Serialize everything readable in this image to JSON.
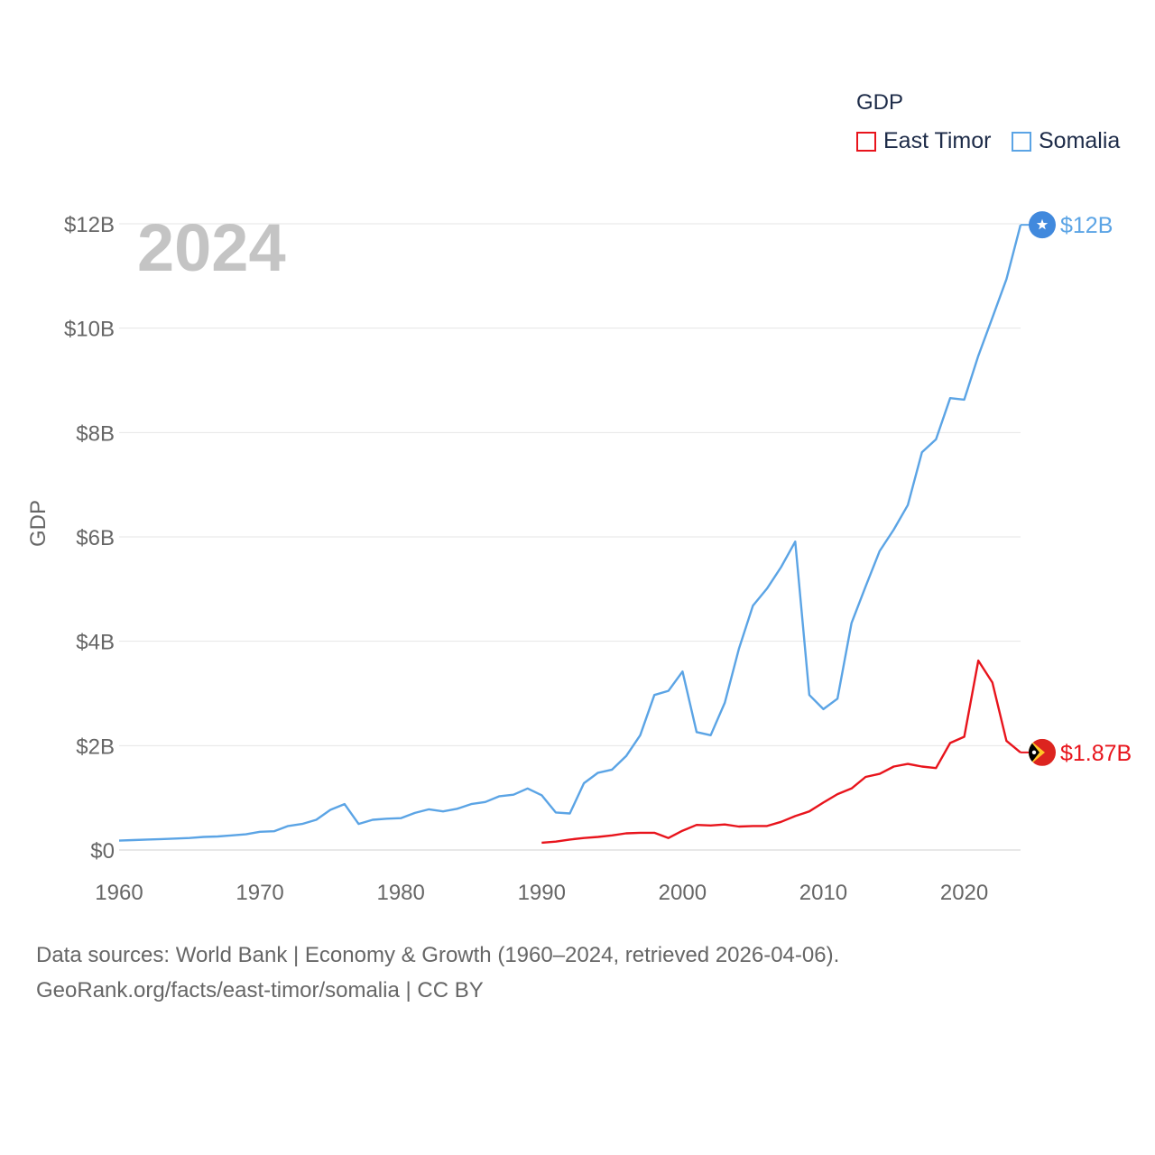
{
  "chart_data": {
    "type": "line",
    "year_label": "2024",
    "ylabel": "GDP",
    "xlabel": "",
    "xlim": [
      1960,
      2024
    ],
    "ylim": [
      0,
      12
    ],
    "x_ticks": [
      1960,
      1970,
      1980,
      1990,
      2000,
      2010,
      2020
    ],
    "x_tick_labels": [
      "1960",
      "1970",
      "1980",
      "1990",
      "2000",
      "2010",
      "2020"
    ],
    "y_ticks": [
      0,
      2,
      4,
      6,
      8,
      10,
      12
    ],
    "y_tick_labels": [
      "$0",
      "$2B",
      "$4B",
      "$6B",
      "$8B",
      "$10B",
      "$12B"
    ],
    "legend": {
      "title": "GDP",
      "position": "top-right",
      "entries": [
        "East Timor",
        "Somalia"
      ]
    },
    "series": [
      {
        "name": "East Timor",
        "color": "#e8141c",
        "end_label": "$1.87B",
        "flag_icon": "east-timor-flag-icon",
        "points": [
          [
            1990,
            0.14
          ],
          [
            1991,
            0.16
          ],
          [
            1992,
            0.2
          ],
          [
            1993,
            0.23
          ],
          [
            1994,
            0.25
          ],
          [
            1995,
            0.28
          ],
          [
            1996,
            0.32
          ],
          [
            1997,
            0.33
          ],
          [
            1998,
            0.33
          ],
          [
            1999,
            0.23
          ],
          [
            2000,
            0.37
          ],
          [
            2001,
            0.48
          ],
          [
            2002,
            0.47
          ],
          [
            2003,
            0.49
          ],
          [
            2004,
            0.45
          ],
          [
            2005,
            0.46
          ],
          [
            2006,
            0.46
          ],
          [
            2007,
            0.54
          ],
          [
            2008,
            0.65
          ],
          [
            2009,
            0.74
          ],
          [
            2010,
            0.91
          ],
          [
            2011,
            1.07
          ],
          [
            2012,
            1.18
          ],
          [
            2013,
            1.4
          ],
          [
            2014,
            1.46
          ],
          [
            2015,
            1.6
          ],
          [
            2016,
            1.65
          ],
          [
            2017,
            1.6
          ],
          [
            2018,
            1.57
          ],
          [
            2019,
            2.05
          ],
          [
            2020,
            2.17
          ],
          [
            2021,
            3.63
          ],
          [
            2022,
            3.21
          ],
          [
            2023,
            2.09
          ],
          [
            2024,
            1.87
          ]
        ]
      },
      {
        "name": "Somalia",
        "color": "#5ba4e5",
        "end_label": "$12B",
        "flag_icon": "somalia-flag-icon",
        "points": [
          [
            1960,
            0.18
          ],
          [
            1961,
            0.19
          ],
          [
            1962,
            0.2
          ],
          [
            1963,
            0.21
          ],
          [
            1964,
            0.22
          ],
          [
            1965,
            0.23
          ],
          [
            1966,
            0.25
          ],
          [
            1967,
            0.26
          ],
          [
            1968,
            0.28
          ],
          [
            1969,
            0.3
          ],
          [
            1970,
            0.35
          ],
          [
            1971,
            0.36
          ],
          [
            1972,
            0.46
          ],
          [
            1973,
            0.5
          ],
          [
            1974,
            0.58
          ],
          [
            1975,
            0.77
          ],
          [
            1976,
            0.88
          ],
          [
            1977,
            0.5
          ],
          [
            1978,
            0.58
          ],
          [
            1979,
            0.6
          ],
          [
            1980,
            0.61
          ],
          [
            1981,
            0.71
          ],
          [
            1982,
            0.78
          ],
          [
            1983,
            0.74
          ],
          [
            1984,
            0.79
          ],
          [
            1985,
            0.88
          ],
          [
            1986,
            0.92
          ],
          [
            1987,
            1.03
          ],
          [
            1988,
            1.06
          ],
          [
            1989,
            1.18
          ],
          [
            1990,
            1.05
          ],
          [
            1991,
            0.72
          ],
          [
            1992,
            0.7
          ],
          [
            1993,
            1.28
          ],
          [
            1994,
            1.48
          ],
          [
            1995,
            1.54
          ],
          [
            1996,
            1.8
          ],
          [
            1997,
            2.2
          ],
          [
            1998,
            2.97
          ],
          [
            1999,
            3.05
          ],
          [
            2000,
            3.42
          ],
          [
            2001,
            2.26
          ],
          [
            2002,
            2.2
          ],
          [
            2003,
            2.82
          ],
          [
            2004,
            3.85
          ],
          [
            2005,
            4.68
          ],
          [
            2006,
            5.01
          ],
          [
            2007,
            5.42
          ],
          [
            2008,
            5.91
          ],
          [
            2009,
            2.97
          ],
          [
            2010,
            2.7
          ],
          [
            2011,
            2.9
          ],
          [
            2012,
            4.35
          ],
          [
            2013,
            5.05
          ],
          [
            2014,
            5.73
          ],
          [
            2015,
            6.14
          ],
          [
            2016,
            6.61
          ],
          [
            2017,
            7.62
          ],
          [
            2018,
            7.87
          ],
          [
            2019,
            8.66
          ],
          [
            2020,
            8.63
          ],
          [
            2021,
            9.47
          ],
          [
            2022,
            10.2
          ],
          [
            2023,
            10.94
          ],
          [
            2024,
            11.98
          ]
        ]
      }
    ]
  },
  "footer": {
    "line1": "Data sources: World Bank | Economy & Growth (1960–2024, retrieved 2026-04-06).",
    "line2": "GeoRank.org/facts/east-timor/somalia | CC BY"
  }
}
